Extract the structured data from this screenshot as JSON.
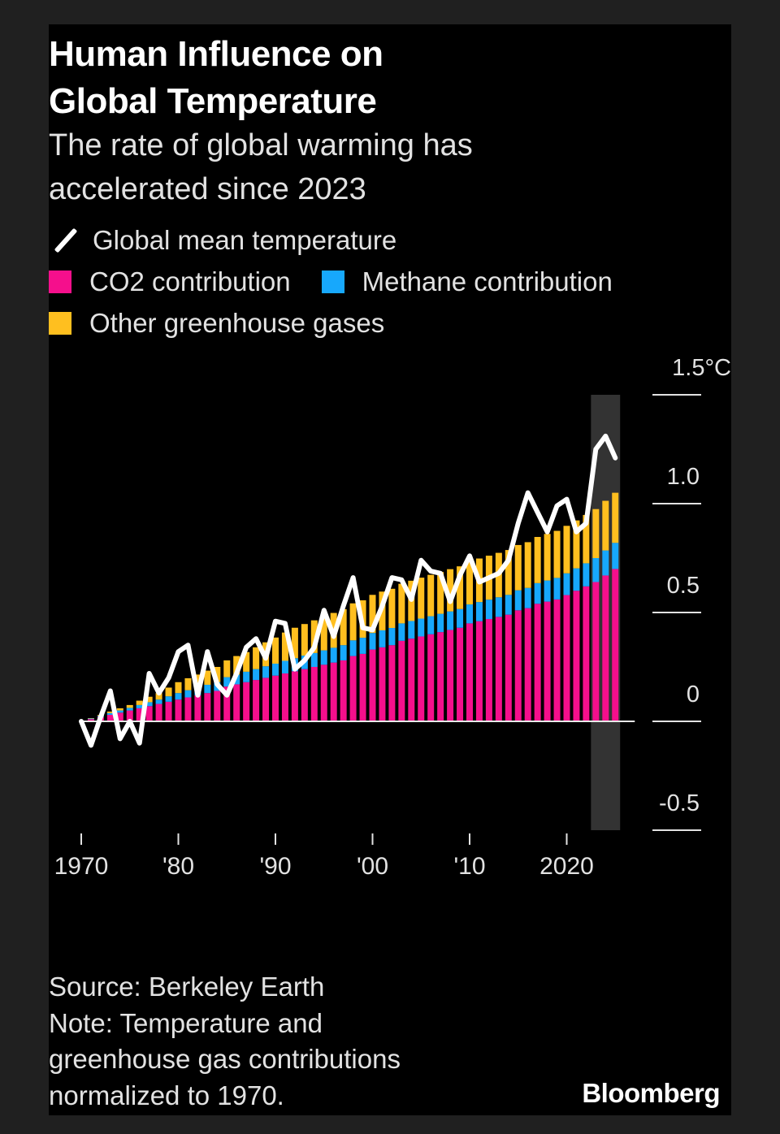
{
  "page": {
    "title_lines": [
      "Human Influence on",
      "Global Temperature"
    ],
    "subtitle_lines": [
      "The rate of global warming has",
      "accelerated since 2023"
    ],
    "source": "Source: Berkeley Earth",
    "note_lines": [
      "Note: Temperature and",
      "greenhouse gas contributions",
      "normalized to 1970."
    ],
    "brand": "Bloomberg"
  },
  "colors": {
    "background": "#000000",
    "outer_background": "#202020",
    "text": "#e2e2e2",
    "title": "#ffffff",
    "co2": "#f50f8c",
    "methane": "#17a8fc",
    "other": "#ffbf1f",
    "temperature_line": "#ffffff",
    "highlight_band": "#333333",
    "axis": "#e2e2e2"
  },
  "legend": [
    {
      "label": "Global mean temperature",
      "type": "line",
      "color_key": "temperature_line"
    },
    {
      "label": "CO2 contribution",
      "type": "swatch",
      "color_key": "co2"
    },
    {
      "label": "Methane contribution",
      "type": "swatch",
      "color_key": "methane"
    },
    {
      "label": "Other greenhouse gases",
      "type": "swatch",
      "color_key": "other"
    }
  ],
  "chart_data": {
    "type": "bar",
    "subtype": "stacked bar with line overlay",
    "title": "Human Influence on Global Temperature",
    "subtitle": "The rate of global warming has accelerated since 2023",
    "xlabel": "",
    "ylabel": "",
    "x_range": [
      1970,
      2025
    ],
    "ylim": [
      -0.5,
      1.5
    ],
    "y_unit": "°C",
    "y_ticks": [
      {
        "value": -0.5,
        "label": "-0.5"
      },
      {
        "value": 0,
        "label": "0"
      },
      {
        "value": 0.5,
        "label": "0.5"
      },
      {
        "value": 1.0,
        "label": "1.0"
      },
      {
        "value": 1.5,
        "label": "1.5°C"
      }
    ],
    "x_ticks": [
      {
        "value": 1970,
        "label": "1970"
      },
      {
        "value": 1980,
        "label": "'80"
      },
      {
        "value": 1990,
        "label": "'90"
      },
      {
        "value": 2000,
        "label": "'00"
      },
      {
        "value": 2010,
        "label": "'10"
      },
      {
        "value": 2020,
        "label": "2020"
      }
    ],
    "highlight_range": [
      2023,
      2025
    ],
    "grid": false,
    "legend_position": "top-left",
    "bar_years": [
      1971,
      1972,
      1973,
      1974,
      1975,
      1976,
      1977,
      1978,
      1979,
      1980,
      1981,
      1982,
      1983,
      1984,
      1985,
      1986,
      1987,
      1988,
      1989,
      1990,
      1991,
      1992,
      1993,
      1994,
      1995,
      1996,
      1997,
      1998,
      1999,
      2000,
      2001,
      2002,
      2003,
      2004,
      2005,
      2006,
      2007,
      2008,
      2009,
      2010,
      2011,
      2012,
      2013,
      2014,
      2015,
      2016,
      2017,
      2018,
      2019,
      2020,
      2021,
      2022,
      2023,
      2024,
      2025
    ],
    "series": [
      {
        "name": "CO2 contribution",
        "kind": "bar",
        "color_key": "co2",
        "values": [
          0.01,
          0.02,
          0.03,
          0.04,
          0.05,
          0.06,
          0.07,
          0.08,
          0.09,
          0.1,
          0.11,
          0.12,
          0.13,
          0.14,
          0.16,
          0.17,
          0.18,
          0.19,
          0.2,
          0.21,
          0.22,
          0.23,
          0.24,
          0.25,
          0.26,
          0.27,
          0.28,
          0.3,
          0.31,
          0.33,
          0.34,
          0.35,
          0.37,
          0.38,
          0.39,
          0.4,
          0.41,
          0.42,
          0.43,
          0.45,
          0.46,
          0.47,
          0.48,
          0.49,
          0.51,
          0.52,
          0.54,
          0.55,
          0.56,
          0.58,
          0.6,
          0.62,
          0.64,
          0.67,
          0.7
        ]
      },
      {
        "name": "Methane contribution",
        "kind": "bar",
        "color_key": "methane",
        "values": [
          0.003,
          0.005,
          0.008,
          0.01,
          0.012,
          0.015,
          0.018,
          0.02,
          0.025,
          0.03,
          0.033,
          0.035,
          0.038,
          0.04,
          0.043,
          0.045,
          0.048,
          0.05,
          0.053,
          0.055,
          0.058,
          0.06,
          0.062,
          0.064,
          0.066,
          0.068,
          0.07,
          0.072,
          0.074,
          0.076,
          0.078,
          0.079,
          0.08,
          0.081,
          0.082,
          0.083,
          0.084,
          0.085,
          0.086,
          0.087,
          0.088,
          0.089,
          0.09,
          0.091,
          0.092,
          0.093,
          0.095,
          0.097,
          0.099,
          0.1,
          0.103,
          0.106,
          0.11,
          0.115,
          0.12
        ]
      },
      {
        "name": "Other greenhouse gases",
        "kind": "bar",
        "color_key": "other",
        "values": [
          0.002,
          0.004,
          0.007,
          0.01,
          0.013,
          0.02,
          0.025,
          0.03,
          0.04,
          0.05,
          0.055,
          0.06,
          0.065,
          0.07,
          0.077,
          0.085,
          0.09,
          0.1,
          0.11,
          0.12,
          0.13,
          0.14,
          0.145,
          0.15,
          0.155,
          0.16,
          0.165,
          0.17,
          0.172,
          0.175,
          0.178,
          0.18,
          0.182,
          0.185,
          0.188,
          0.19,
          0.192,
          0.194,
          0.196,
          0.198,
          0.2,
          0.202,
          0.204,
          0.206,
          0.208,
          0.21,
          0.212,
          0.214,
          0.216,
          0.218,
          0.22,
          0.222,
          0.225,
          0.228,
          0.23
        ]
      },
      {
        "name": "Global mean temperature",
        "kind": "line",
        "color_key": "temperature_line",
        "x": [
          1970,
          1971,
          1972,
          1973,
          1974,
          1975,
          1976,
          1977,
          1978,
          1979,
          1980,
          1981,
          1982,
          1983,
          1984,
          1985,
          1986,
          1987,
          1988,
          1989,
          1990,
          1991,
          1992,
          1993,
          1994,
          1995,
          1996,
          1997,
          1998,
          1999,
          2000,
          2001,
          2002,
          2003,
          2004,
          2005,
          2006,
          2007,
          2008,
          2009,
          2010,
          2011,
          2012,
          2013,
          2014,
          2015,
          2016,
          2017,
          2018,
          2019,
          2020,
          2021,
          2022,
          2023,
          2024,
          2025
        ],
        "values": [
          0.0,
          -0.11,
          0.02,
          0.14,
          -0.08,
          0.0,
          -0.1,
          0.22,
          0.13,
          0.2,
          0.32,
          0.35,
          0.12,
          0.32,
          0.17,
          0.12,
          0.22,
          0.34,
          0.38,
          0.29,
          0.46,
          0.45,
          0.24,
          0.28,
          0.34,
          0.51,
          0.39,
          0.53,
          0.66,
          0.43,
          0.42,
          0.53,
          0.66,
          0.65,
          0.56,
          0.74,
          0.69,
          0.68,
          0.55,
          0.67,
          0.76,
          0.64,
          0.66,
          0.68,
          0.74,
          0.91,
          1.05,
          0.96,
          0.87,
          0.99,
          1.02,
          0.87,
          0.91,
          1.25,
          1.31,
          1.21
        ]
      }
    ],
    "source": "Berkeley Earth",
    "note": "Temperature and greenhouse gas contributions normalized to 1970."
  }
}
